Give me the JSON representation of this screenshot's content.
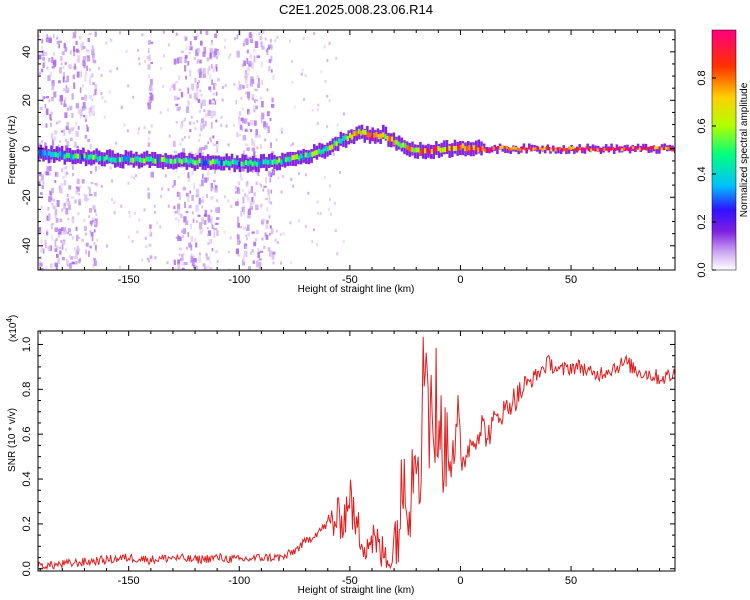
{
  "title": "C2E1.2025.008.23.06.R14",
  "chart_data": [
    {
      "type": "heatmap",
      "xlabel": "Height of straight line (km)",
      "ylabel": "Frequency (Hz)",
      "xlim": [
        -191,
        97
      ],
      "ylim": [
        -50,
        49
      ],
      "x_ticks": [
        -150,
        -100,
        -50,
        0,
        50
      ],
      "x_tick_labels": [
        "-150",
        "-100",
        "-50",
        "0",
        "50"
      ],
      "y_ticks": [
        -40,
        -20,
        0,
        20,
        40
      ],
      "y_tick_labels": [
        "-40",
        "-20",
        "0",
        "20",
        "40"
      ],
      "colorbar": {
        "label": "Normalized spectral amplitude",
        "range": [
          0,
          1
        ],
        "ticks": [
          0.0,
          0.2,
          0.4,
          0.6,
          0.8
        ],
        "tick_labels": [
          "0.0",
          "0.2",
          "0.4",
          "0.6",
          "0.8"
        ],
        "colors": [
          "#ffffff",
          "#c8a0f0",
          "#8020e0",
          "#3010ff",
          "#00c0ff",
          "#00ff80",
          "#b0ff00",
          "#ffd000",
          "#ff3000",
          "#ff0080"
        ]
      },
      "ridge": {
        "x": [
          -191,
          -175,
          -160,
          -145,
          -130,
          -115,
          -100,
          -90,
          -80,
          -70,
          -60,
          -55,
          -50,
          -45,
          -40,
          -35,
          -30,
          -25,
          -20,
          -15,
          -10,
          -5,
          0,
          5,
          10,
          30,
          50,
          70,
          97
        ],
        "y": [
          -2,
          -3,
          -4,
          -4.5,
          -5,
          -5.5,
          -6,
          -6,
          -5,
          -3,
          0,
          3,
          5,
          7,
          5,
          6,
          3,
          1,
          -1,
          -1,
          0,
          0,
          1,
          0,
          0,
          0,
          0,
          0,
          0
        ],
        "amplitude": [
          0.45,
          0.5,
          0.55,
          0.55,
          0.5,
          0.5,
          0.5,
          0.5,
          0.55,
          0.55,
          0.6,
          0.6,
          0.65,
          0.8,
          0.85,
          0.8,
          0.7,
          0.7,
          0.75,
          0.85,
          0.8,
          0.8,
          0.85,
          0.9,
          0.9,
          0.9,
          0.9,
          0.9,
          0.9
        ]
      },
      "noise_bands_x": [
        [
          -191,
          -165
        ],
        [
          -142,
          -140
        ],
        [
          -130,
          -110
        ],
        [
          -102,
          -85
        ]
      ]
    },
    {
      "type": "line",
      "xlabel": "Height of straight line (km)",
      "ylabel": "SNR (10 * v/v)",
      "y_multiplier": "(x10",
      "y_multiplier_exp": "4",
      "y_multiplier_close": ")",
      "xlim": [
        -191,
        97
      ],
      "ylim": [
        -0.01,
        1.06
      ],
      "x_ticks": [
        -150,
        -100,
        -50,
        0,
        50
      ],
      "x_tick_labels": [
        "-150",
        "-100",
        "-50",
        "0",
        "50"
      ],
      "y_ticks": [
        0.0,
        0.2,
        0.4,
        0.6,
        0.8,
        1.0
      ],
      "y_tick_labels": [
        "0.0",
        "0.2",
        "0.4",
        "0.6",
        "0.8",
        "1.0"
      ],
      "line_color": "#e02020",
      "series": [
        {
          "x": [
            -191,
            -180,
            -170,
            -160,
            -150,
            -140,
            -130,
            -120,
            -110,
            -100,
            -90,
            -80,
            -75,
            -70,
            -65,
            -60,
            -55,
            -52,
            -50,
            -48,
            -45,
            -42,
            -40,
            -38,
            -35,
            -32,
            -30,
            -28,
            -26,
            -25,
            -23,
            -21,
            -20,
            -18,
            -17,
            -16,
            -15,
            -14,
            -13,
            -12,
            -11,
            -10,
            -9,
            -8,
            -7,
            -6,
            -5,
            -4,
            -3,
            -2,
            -1,
            0,
            2,
            4,
            6,
            8,
            10,
            12,
            15,
            18,
            20,
            23,
            25,
            28,
            30,
            33,
            35,
            38,
            40,
            45,
            50,
            55,
            60,
            65,
            70,
            75,
            80,
            85,
            90,
            95,
            97
          ],
          "y": [
            0.01,
            0.02,
            0.03,
            0.04,
            0.05,
            0.04,
            0.05,
            0.04,
            0.05,
            0.04,
            0.05,
            0.05,
            0.08,
            0.12,
            0.16,
            0.2,
            0.22,
            0.24,
            0.35,
            0.2,
            0.15,
            0.12,
            0.14,
            0.1,
            0.06,
            0.03,
            0.1,
            0.2,
            0.35,
            0.5,
            0.28,
            0.55,
            0.6,
            0.45,
            0.85,
            0.9,
            1.05,
            0.55,
            0.9,
            0.45,
            0.8,
            0.4,
            0.7,
            0.55,
            0.5,
            0.6,
            0.55,
            0.6,
            0.6,
            0.55,
            0.58,
            0.45,
            0.5,
            0.55,
            0.58,
            0.6,
            0.65,
            0.58,
            0.65,
            0.7,
            0.7,
            0.75,
            0.76,
            0.8,
            0.82,
            0.85,
            0.87,
            0.9,
            0.92,
            0.88,
            0.9,
            0.9,
            0.86,
            0.88,
            0.9,
            0.92,
            0.88,
            0.87,
            0.85,
            0.86,
            0.87
          ]
        }
      ]
    }
  ]
}
